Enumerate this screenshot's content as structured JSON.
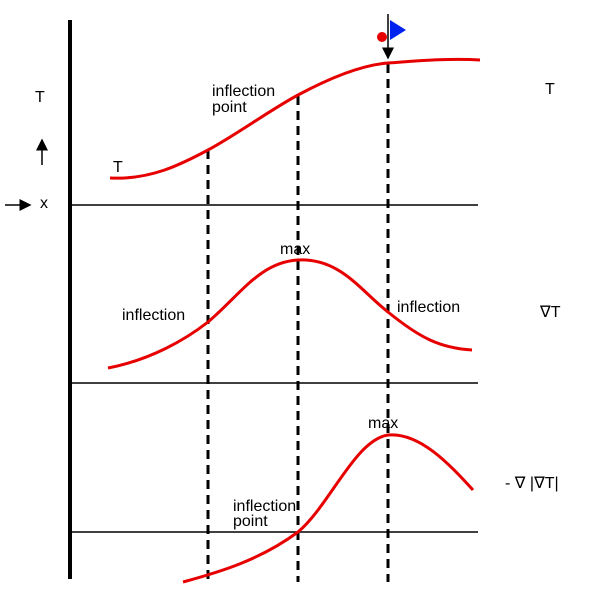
{
  "axis": {
    "y_label": "T",
    "x_label": "x"
  },
  "panels": [
    {
      "label": "T",
      "curve_label": "T",
      "annotations": [
        "inflection",
        "point"
      ]
    },
    {
      "label": "∇T",
      "annotations": [
        "max",
        "inflection",
        "inflection"
      ]
    },
    {
      "label": "- ∇ |∇T|",
      "annotations": [
        "max",
        "inflection",
        "point"
      ]
    }
  ]
}
